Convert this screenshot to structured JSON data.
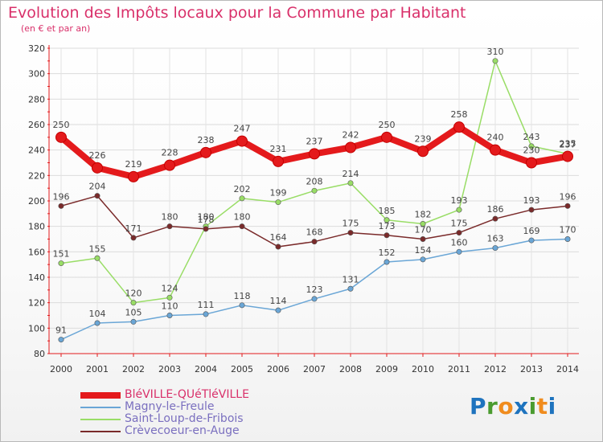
{
  "chart_data": {
    "type": "line",
    "title": "Evolution des Impôts locaux pour la Commune par Habitant",
    "subtitle": "(en € et par an)",
    "x": [
      2000,
      2001,
      2002,
      2003,
      2004,
      2005,
      2006,
      2007,
      2008,
      2009,
      2010,
      2011,
      2012,
      2013,
      2014
    ],
    "x_tick_labels": [
      "2000",
      "2001",
      "2002",
      "2003",
      "2004",
      "2005",
      "2006",
      "2007",
      "2008",
      "2009",
      "2010",
      "2011",
      "2012",
      "2013",
      "2014"
    ],
    "ylim": [
      80,
      320
    ],
    "y_ticks": [
      80,
      100,
      120,
      140,
      160,
      180,
      200,
      220,
      240,
      260,
      280,
      300,
      320
    ],
    "grid": true,
    "legend_position": "bottom-left",
    "series": [
      {
        "name": "BléVILLE-QUéTléVILLE",
        "color": "#e41a1c",
        "values": [
          250,
          226,
          219,
          228,
          238,
          247,
          231,
          237,
          242,
          250,
          239,
          258,
          240,
          230,
          235
        ]
      },
      {
        "name": "Magny-le-Freule",
        "color": "#6aa6d6",
        "values": [
          91,
          104,
          105,
          110,
          111,
          118,
          114,
          123,
          131,
          152,
          154,
          160,
          163,
          169,
          170
        ]
      },
      {
        "name": "Saint-Loup-de-Fribois",
        "color": "#99dd66",
        "values": [
          151,
          155,
          120,
          124,
          180,
          202,
          199,
          208,
          214,
          185,
          182,
          193,
          310,
          243,
          237
        ]
      },
      {
        "name": "Crèvecoeur-en-Auge",
        "color": "#7a2a2a",
        "values": [
          196,
          204,
          171,
          180,
          178,
          180,
          164,
          168,
          175,
          173,
          170,
          175,
          186,
          193,
          196
        ]
      }
    ]
  },
  "logo": {
    "letters": [
      "P",
      "r",
      "o",
      "x",
      "i",
      "t",
      "i"
    ],
    "colors": [
      "#1e73be",
      "#4a9b2f",
      "#f08c1e",
      "#1e73be",
      "#4a9b2f",
      "#f08c1e",
      "#1e73be"
    ]
  }
}
